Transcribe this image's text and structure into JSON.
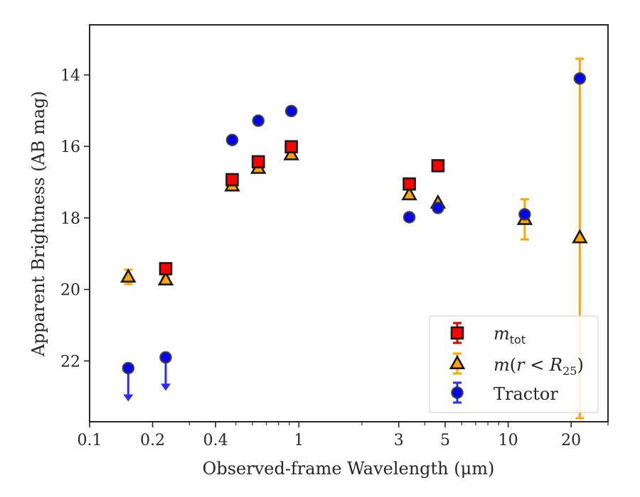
{
  "chart_data": {
    "type": "scatter",
    "xlabel": "Observed-frame Wavelength (μm)",
    "ylabel": "Apparent Brightness (AB mag)",
    "xscale": "log",
    "xlim": [
      0.1,
      30
    ],
    "ylim": [
      23.7,
      12.6
    ],
    "y_inverted": true,
    "grid": false,
    "legend_position": "lower-right",
    "x_ticks": [
      {
        "value": 0.1,
        "label": "0.1"
      },
      {
        "value": 0.2,
        "label": "0.2"
      },
      {
        "value": 0.4,
        "label": "0.4"
      },
      {
        "value": 1,
        "label": "1"
      },
      {
        "value": 3,
        "label": "3"
      },
      {
        "value": 5,
        "label": "5"
      },
      {
        "value": 10,
        "label": "10"
      },
      {
        "value": 20,
        "label": "20"
      }
    ],
    "x_minor_ticks": [
      0.3,
      0.5,
      0.6,
      0.7,
      0.8,
      0.9,
      2,
      4,
      6,
      7,
      8,
      9,
      30
    ],
    "y_ticks": [
      {
        "value": 14,
        "label": "14"
      },
      {
        "value": 16,
        "label": "16"
      },
      {
        "value": 18,
        "label": "18"
      },
      {
        "value": 20,
        "label": "20"
      },
      {
        "value": 22,
        "label": "22"
      }
    ],
    "series": [
      {
        "key": "mtot",
        "legend_base": "m",
        "legend_sub": "tot",
        "marker": "square",
        "color": "#ff0000",
        "edge_color": "#1a1a1a",
        "error_color": "#e00000",
        "points": [
          {
            "x": 0.153,
            "y": null
          },
          {
            "x": 0.231,
            "y": 19.42
          },
          {
            "x": 0.48,
            "y": 16.93
          },
          {
            "x": 0.64,
            "y": 16.43
          },
          {
            "x": 0.92,
            "y": 16.01
          },
          {
            "x": 3.37,
            "y": 17.05
          },
          {
            "x": 4.62,
            "y": 16.54
          }
        ]
      },
      {
        "key": "mr25",
        "legend_base": "m",
        "legend_paren_open": "(",
        "legend_var": "r",
        "legend_op": " < ",
        "legend_R": "R",
        "legend_sub": "25",
        "legend_paren_close": ")",
        "marker": "triangle",
        "color": "#ffa500",
        "edge_color": "#1a1a1a",
        "error_color": "#ffa500",
        "points": [
          {
            "x": 0.153,
            "y": 19.65,
            "err": 0.2
          },
          {
            "x": 0.231,
            "y": 19.73,
            "err": 0.08
          },
          {
            "x": 0.48,
            "y": 17.1
          },
          {
            "x": 0.64,
            "y": 16.61
          },
          {
            "x": 0.92,
            "y": 16.23
          },
          {
            "x": 3.37,
            "y": 17.35
          },
          {
            "x": 4.62,
            "y": 17.58
          },
          {
            "x": 12.0,
            "y": 18.04,
            "err": 0.56
          },
          {
            "x": 22.0,
            "y": 18.55,
            "err_low": 5.0,
            "err_high": 5.05
          }
        ]
      },
      {
        "key": "tractor",
        "legend_label": "Tractor",
        "marker": "circle",
        "color": "#0000ff",
        "edge_color": "#333333",
        "error_color": "#2b2bff",
        "points": [
          {
            "x": 0.153,
            "y": 22.2,
            "upper_limit": true
          },
          {
            "x": 0.231,
            "y": 21.9,
            "upper_limit": true
          },
          {
            "x": 0.48,
            "y": 15.82
          },
          {
            "x": 0.64,
            "y": 15.28
          },
          {
            "x": 0.92,
            "y": 15.01
          },
          {
            "x": 3.37,
            "y": 17.98
          },
          {
            "x": 4.62,
            "y": 17.72
          },
          {
            "x": 12.0,
            "y": 17.9
          },
          {
            "x": 22.0,
            "y": 14.1
          }
        ]
      }
    ]
  }
}
